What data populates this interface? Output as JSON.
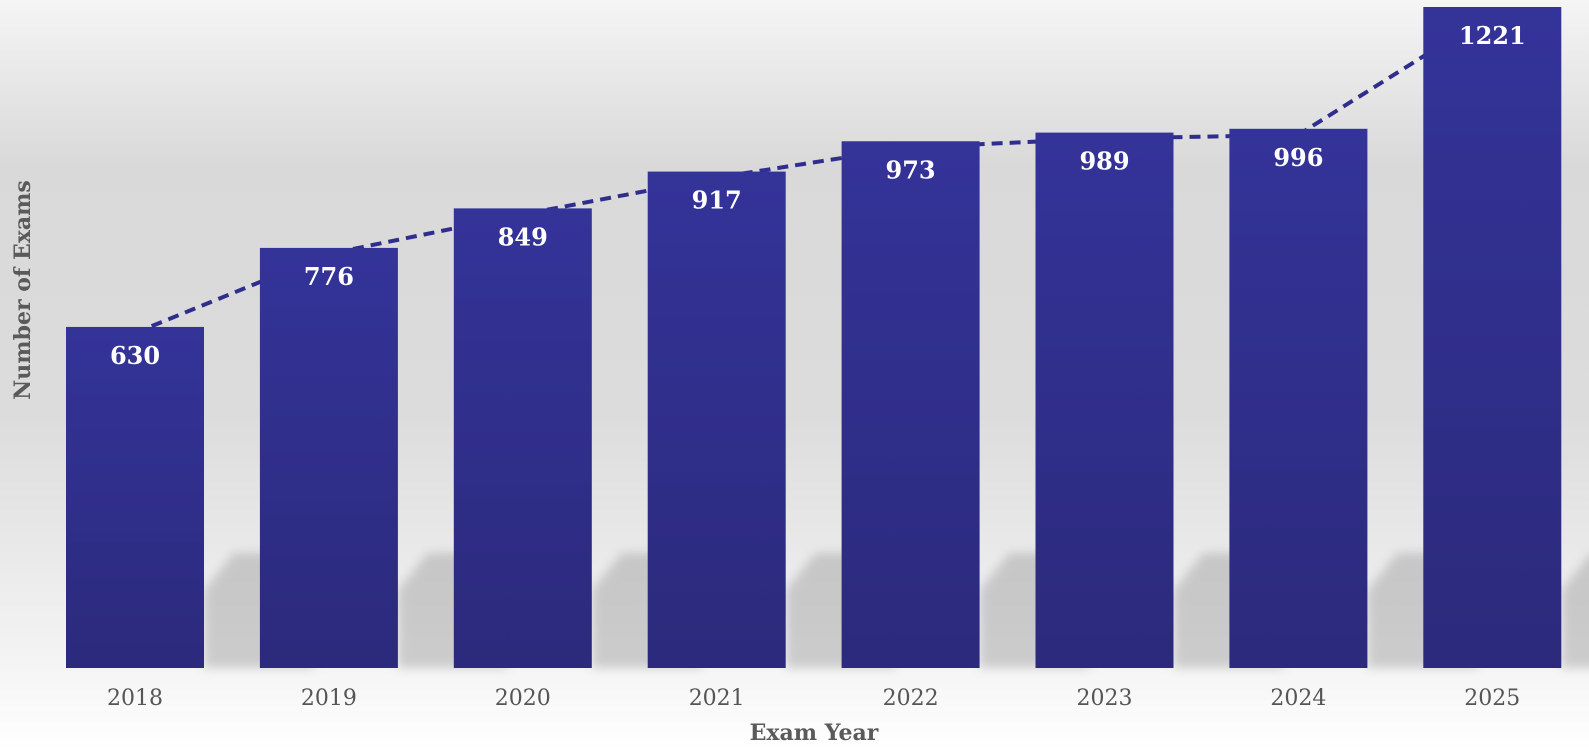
{
  "chart_data": {
    "type": "bar",
    "title": "",
    "xlabel": "Exam Year",
    "ylabel": "Number of Exams",
    "categories": [
      "2018",
      "2019",
      "2020",
      "2021",
      "2022",
      "2023",
      "2024",
      "2025"
    ],
    "series": [
      {
        "values": [
          630,
          776,
          849,
          917,
          973,
          989,
          996,
          1221
        ]
      }
    ],
    "overlay": {
      "type": "line",
      "style": "dashed",
      "values": [
        630,
        776,
        849,
        917,
        973,
        989,
        996,
        1221
      ]
    },
    "ylim": [
      0,
      1221
    ],
    "grid": false,
    "legend": "none",
    "colors": {
      "bar_top": "#343399",
      "bar_bottom": "#2b2a7c",
      "trend_line": "#2f2e8c",
      "data_label": "#ffffff",
      "tick_label": "#555555",
      "axis_title": "#5a5a5a"
    }
  }
}
